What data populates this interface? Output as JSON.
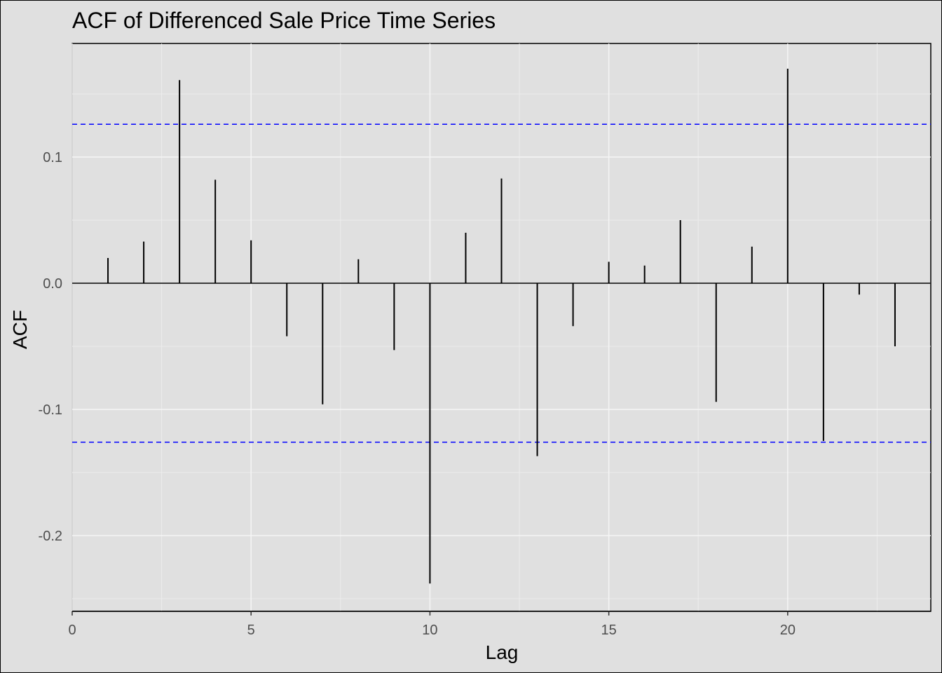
{
  "chart_data": {
    "type": "bar",
    "title": "ACF of Differenced Sale Price Time Series",
    "xlabel": "Lag",
    "ylabel": "ACF",
    "xlim": [
      0,
      24
    ],
    "ylim": [
      -0.26,
      0.19
    ],
    "x_ticks": [
      0,
      5,
      10,
      15,
      20
    ],
    "x_tick_labels": [
      "0",
      "5",
      "10",
      "15",
      "20"
    ],
    "y_ticks": [
      -0.2,
      -0.1,
      0.0,
      0.1
    ],
    "y_tick_labels": [
      "-0.2",
      "-0.1",
      "0.0",
      "0.1"
    ],
    "grid": true,
    "lags": [
      1,
      2,
      3,
      4,
      5,
      6,
      7,
      8,
      9,
      10,
      11,
      12,
      13,
      14,
      15,
      16,
      17,
      18,
      19,
      20,
      21,
      22,
      23
    ],
    "values": [
      0.02,
      0.033,
      0.161,
      0.082,
      0.034,
      -0.042,
      -0.096,
      0.019,
      -0.053,
      -0.238,
      0.04,
      0.083,
      -0.137,
      -0.034,
      0.017,
      0.014,
      0.05,
      -0.094,
      0.029,
      0.17,
      -0.125,
      -0.009,
      -0.05
    ],
    "confidence_bounds": [
      0.126,
      -0.126
    ],
    "bar_color": "#000000",
    "bound_color": "#0000ff"
  }
}
